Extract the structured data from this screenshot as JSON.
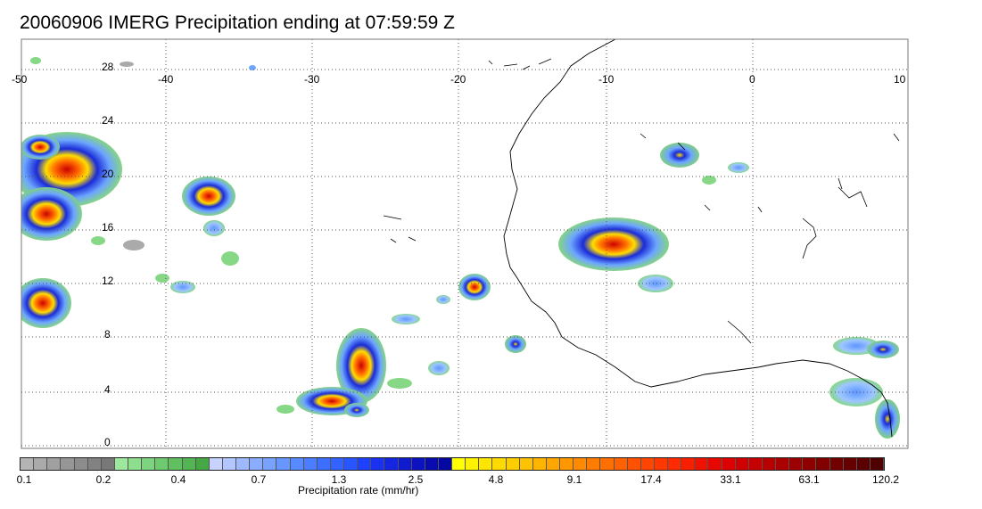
{
  "title": "20060906 IMERG Precipitation ending at 07:59:59 Z",
  "map": {
    "lon_labels": [
      "-50",
      "-40",
      "-30",
      "-20",
      "-10",
      "0",
      "10"
    ],
    "lat_labels": [
      "28",
      "24",
      "20",
      "16",
      "12",
      "8",
      "4",
      "0"
    ],
    "lon_values": [
      -50,
      -40,
      -30,
      -20,
      -10,
      0,
      10
    ],
    "lat_values": [
      28,
      24,
      20,
      16,
      12,
      8,
      4,
      0
    ],
    "extent": {
      "lon_min": -50,
      "lon_max": 10,
      "lat_min": -0.5,
      "lat_max": 30.5
    },
    "gridlines": "dotted",
    "colors": {
      "coast": "#000000",
      "grid": "#555555"
    }
  },
  "colorbar": {
    "label": "Precipitation rate (mm/hr)",
    "ticks": [
      "0.1",
      "0.2",
      "0.4",
      "0.7",
      "1.3",
      "2.5",
      "4.8",
      "9.1",
      "17.4",
      "33.1",
      "63.1",
      "120.2"
    ],
    "colors": [
      "#b4b4b4",
      "#aaaaaa",
      "#a0a0a0",
      "#969696",
      "#8c8c8c",
      "#828282",
      "#787878",
      "#9de89d",
      "#8ddf8d",
      "#7ed47e",
      "#6fca6f",
      "#60c060",
      "#52b552",
      "#45a845",
      "#c8d2ff",
      "#b4c6ff",
      "#9fb9ff",
      "#8aadff",
      "#78a2ff",
      "#6896ff",
      "#588aff",
      "#4a7dff",
      "#3d6fff",
      "#3262ff",
      "#2755ff",
      "#1e40ff",
      "#1a32f0",
      "#1526e0",
      "#101bd0",
      "#0c12c0",
      "#080cb0",
      "#0508a0",
      "#ffff00",
      "#fff200",
      "#ffe600",
      "#ffda00",
      "#ffce00",
      "#ffc200",
      "#ffb400",
      "#ffa600",
      "#ff9800",
      "#ff8a00",
      "#ff7c00",
      "#ff6e00",
      "#ff6000",
      "#ff5200",
      "#ff4500",
      "#ff3800",
      "#ff2a00",
      "#f81e00",
      "#ef1200",
      "#e60800",
      "#dc0000",
      "#d00000",
      "#c40000",
      "#b80000",
      "#aa0000",
      "#9c0000",
      "#8e0000",
      "#800000",
      "#720000",
      "#660000",
      "#5a0000",
      "#4e0000"
    ]
  }
}
